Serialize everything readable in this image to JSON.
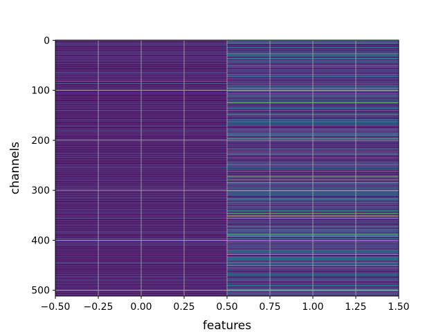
{
  "chart_data": {
    "type": "heatmap",
    "title": "",
    "xlabel": "features",
    "ylabel": "channels",
    "xlim": [
      -0.5,
      1.5
    ],
    "ylim": [
      511.5,
      -0.5
    ],
    "grid": true,
    "xticks": [
      -0.5,
      -0.25,
      0.0,
      0.25,
      0.5,
      0.75,
      1.0,
      1.25,
      1.5
    ],
    "xtick_labels": [
      "−0.50",
      "−0.25",
      "0.00",
      "0.25",
      "0.50",
      "0.75",
      "1.00",
      "1.25",
      "1.50"
    ],
    "yticks": [
      0,
      100,
      200,
      300,
      400,
      500
    ],
    "ytick_labels": [
      "0",
      "100",
      "200",
      "300",
      "400",
      "500"
    ],
    "colormap": "viridis",
    "n_rows": 512,
    "columns": [
      {
        "feature": 0,
        "base": 0.05,
        "spread": 0.12,
        "highlights": [
          {
            "channel": 8,
            "value": 0.28
          },
          {
            "channel": 27,
            "value": 0.22
          },
          {
            "channel": 82,
            "value": 0.38
          },
          {
            "channel": 86,
            "value": 0.3
          },
          {
            "channel": 140,
            "value": 0.2
          },
          {
            "channel": 181,
            "value": 0.22
          },
          {
            "channel": 255,
            "value": 0.2
          },
          {
            "channel": 310,
            "value": 0.18
          },
          {
            "channel": 356,
            "value": 0.22
          },
          {
            "channel": 445,
            "value": 0.2
          },
          {
            "channel": 480,
            "value": 0.18
          }
        ]
      },
      {
        "feature": 1,
        "base": 0.08,
        "spread": 0.34,
        "highlights": [
          {
            "channel": 5,
            "value": 0.55
          },
          {
            "channel": 14,
            "value": 0.45
          },
          {
            "channel": 27,
            "value": 0.58
          },
          {
            "channel": 31,
            "value": 0.5
          },
          {
            "channel": 96,
            "value": 0.55
          },
          {
            "channel": 101,
            "value": 0.5
          },
          {
            "channel": 107,
            "value": 0.45
          },
          {
            "channel": 113,
            "value": 0.5
          },
          {
            "channel": 125,
            "value": 0.78
          },
          {
            "channel": 148,
            "value": 0.62
          },
          {
            "channel": 163,
            "value": 0.55
          },
          {
            "channel": 196,
            "value": 0.72
          },
          {
            "channel": 200,
            "value": 0.55
          },
          {
            "channel": 218,
            "value": 0.55
          },
          {
            "channel": 228,
            "value": 0.5
          },
          {
            "channel": 248,
            "value": 0.45
          },
          {
            "channel": 262,
            "value": 0.45
          },
          {
            "channel": 272,
            "value": 0.82
          },
          {
            "channel": 279,
            "value": 0.75
          },
          {
            "channel": 284,
            "value": 0.62
          },
          {
            "channel": 301,
            "value": 0.5
          },
          {
            "channel": 318,
            "value": 0.55
          },
          {
            "channel": 341,
            "value": 0.62
          },
          {
            "channel": 346,
            "value": 0.72
          },
          {
            "channel": 351,
            "value": 0.92
          },
          {
            "channel": 356,
            "value": 0.7
          },
          {
            "channel": 372,
            "value": 0.55
          },
          {
            "channel": 388,
            "value": 0.72
          },
          {
            "channel": 392,
            "value": 0.62
          },
          {
            "channel": 403,
            "value": 0.5
          },
          {
            "channel": 428,
            "value": 0.82
          },
          {
            "channel": 445,
            "value": 0.6
          },
          {
            "channel": 450,
            "value": 0.55
          },
          {
            "channel": 471,
            "value": 0.45
          },
          {
            "channel": 490,
            "value": 0.55
          },
          {
            "channel": 499,
            "value": 0.62
          },
          {
            "channel": 506,
            "value": 0.45
          }
        ]
      }
    ]
  }
}
